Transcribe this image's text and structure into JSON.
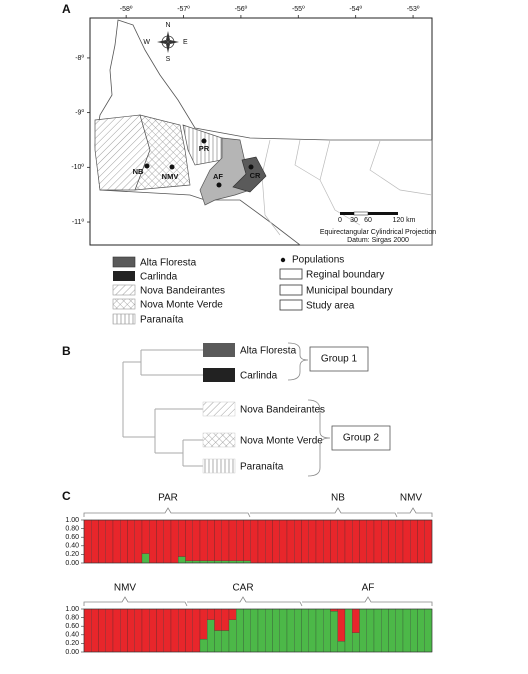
{
  "panel_a": {
    "label": "A",
    "map": {
      "xlim": [
        -58.63,
        -52.67
      ],
      "ylim": [
        -7.27,
        -11.42
      ],
      "xticks": [
        {
          "value": -58,
          "label": "-58º"
        },
        {
          "value": -57,
          "label": "-57º"
        },
        {
          "value": -56,
          "label": "-56º"
        },
        {
          "value": -55,
          "label": "-55º"
        },
        {
          "value": -54,
          "label": "-54º"
        },
        {
          "value": -53,
          "label": "-53º"
        }
      ],
      "yticks": [
        {
          "value": -8,
          "label": "-8º"
        },
        {
          "value": -9,
          "label": "-9º"
        },
        {
          "value": -10,
          "label": "-10º"
        },
        {
          "value": -11,
          "label": "-11º"
        }
      ],
      "compass": {
        "n": "N",
        "s": "S",
        "e": "E",
        "w": "W"
      },
      "populations": [
        "PR",
        "NB",
        "NMV",
        "AF",
        "CR"
      ],
      "scale_bar": [
        "0",
        "30",
        "60",
        "120 km"
      ],
      "projection": "Equirectangular Cylindrical Projection",
      "datum": "Datum: Sirgas 2000"
    },
    "legend": {
      "municipalities": [
        "Alta Floresta",
        "Carlinda",
        "Nova Bandeirantes",
        "Nova Monte Verde",
        "Paranaíta"
      ],
      "symbols": [
        "Populations",
        "Reginal boundary",
        "Municipal boundary",
        "Study area"
      ]
    }
  },
  "panel_b": {
    "label": "B",
    "leaves": [
      "Alta Floresta",
      "Carlinda",
      "Nova Bandeirantes",
      "Nova Monte Verde",
      "Paranaíta"
    ],
    "groups": [
      "Group 1",
      "Group 2"
    ]
  },
  "panel_c": {
    "label": "C",
    "charts": [
      {
        "groups": [
          "PAR",
          "NB",
          "NMV"
        ]
      },
      {
        "groups": [
          "NMV",
          "CAR",
          "AF"
        ]
      }
    ]
  },
  "chart_data": [
    {
      "type": "bar",
      "stacked": true,
      "ylim": [
        0,
        1
      ],
      "yticks": [
        {
          "value": 1,
          "label": "1.00"
        },
        {
          "value": 0.8,
          "label": "0.80"
        },
        {
          "value": 0.6,
          "label": "0.60"
        },
        {
          "value": 0.4,
          "label": "0.40"
        },
        {
          "value": 0.2,
          "label": "0.20"
        },
        {
          "value": 0,
          "label": "0.00"
        }
      ],
      "series": [
        {
          "color": "#4cb848",
          "values": [
            0,
            0,
            0,
            0,
            0,
            0,
            0,
            0,
            0.22,
            0,
            0,
            0,
            0,
            0.15,
            0.05,
            0.05,
            0.05,
            0.05,
            0.05,
            0.05,
            0.05,
            0.05,
            0.05,
            0,
            0,
            0,
            0,
            0,
            0,
            0,
            0,
            0,
            0,
            0,
            0,
            0,
            0,
            0,
            0,
            0,
            0,
            0,
            0,
            0,
            0,
            0,
            0,
            0
          ]
        },
        {
          "color": "#e8262b",
          "values": [
            1,
            1,
            1,
            1,
            1,
            1,
            1,
            1,
            0.78,
            1,
            1,
            1,
            1,
            0.85,
            0.95,
            0.95,
            0.95,
            0.95,
            0.95,
            0.95,
            0.95,
            0.95,
            0.95,
            1,
            1,
            1,
            1,
            1,
            1,
            1,
            1,
            1,
            1,
            1,
            1,
            1,
            1,
            1,
            1,
            1,
            1,
            1,
            1,
            1,
            1,
            1,
            1,
            1
          ]
        }
      ]
    },
    {
      "type": "bar",
      "stacked": true,
      "ylim": [
        0,
        1
      ],
      "yticks": [
        {
          "value": 1,
          "label": "1.00"
        },
        {
          "value": 0.8,
          "label": "0.80"
        },
        {
          "value": 0.6,
          "label": "0.60"
        },
        {
          "value": 0.4,
          "label": "0.40"
        },
        {
          "value": 0.2,
          "label": "0.20"
        },
        {
          "value": 0,
          "label": "0.00"
        }
      ],
      "series": [
        {
          "color": "#4cb848",
          "values": [
            0,
            0,
            0,
            0,
            0,
            0,
            0,
            0,
            0,
            0,
            0,
            0,
            0,
            0,
            0,
            0,
            0.3,
            0.75,
            0.5,
            0.5,
            0.75,
            1,
            1,
            1,
            1,
            1,
            1,
            1,
            1,
            1,
            1,
            1,
            1,
            1,
            0.95,
            0.25,
            1,
            0.45,
            1,
            1,
            1,
            1,
            1,
            1,
            1,
            1,
            1,
            1
          ]
        },
        {
          "color": "#e8262b",
          "values": [
            1,
            1,
            1,
            1,
            1,
            1,
            1,
            1,
            1,
            1,
            1,
            1,
            1,
            1,
            1,
            1,
            0.7,
            0.25,
            0.5,
            0.5,
            0.25,
            0,
            0,
            0,
            0,
            0,
            0,
            0,
            0,
            0,
            0,
            0,
            0,
            0,
            0.05,
            0.75,
            0,
            0.55,
            0,
            0,
            0,
            0,
            0,
            0,
            0,
            0,
            0,
            0
          ]
        }
      ]
    }
  ]
}
